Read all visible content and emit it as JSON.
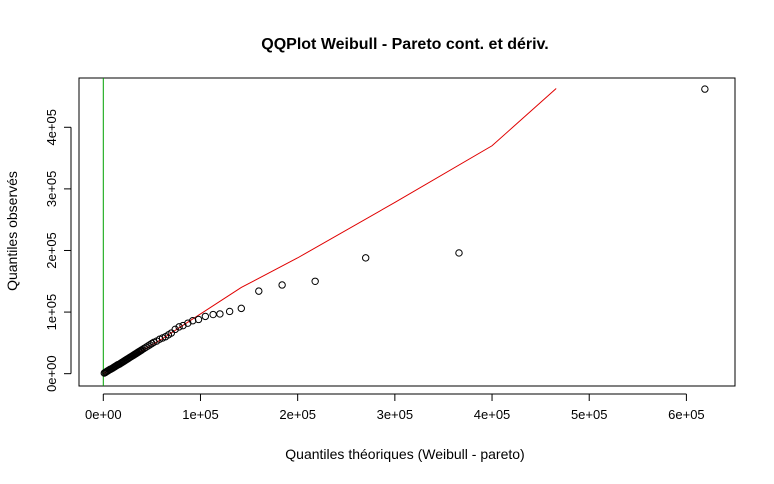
{
  "chart_data": {
    "type": "scatter",
    "title": "QQPlot Weibull - Pareto cont. et dériv.",
    "xlabel": "Quantiles théoriques (Weibull - pareto)",
    "ylabel": "Quantiles observés",
    "xlim": [
      -25000,
      650000
    ],
    "ylim": [
      -20000,
      480000
    ],
    "x_ticks": [
      0,
      100000,
      200000,
      300000,
      400000,
      500000,
      600000
    ],
    "x_tick_labels": [
      "0e+00",
      "1e+05",
      "2e+05",
      "3e+05",
      "4e+05",
      "5e+05",
      "6e+05"
    ],
    "y_ticks": [
      0,
      100000,
      200000,
      300000,
      400000
    ],
    "y_tick_labels": [
      "0e+00",
      "1e+05",
      "2e+05",
      "3e+05",
      "4e+05"
    ],
    "grid": false,
    "colors": {
      "points": "#000000",
      "fit_line": "#e00000",
      "reference_line": "#00a000"
    },
    "fit_line": {
      "x": [
        0,
        60000,
        142000,
        200000,
        300000,
        400000,
        466000
      ],
      "y": [
        0,
        56000,
        140000,
        188000,
        278000,
        370000,
        463000
      ]
    },
    "reference_line": {
      "x": 0
    },
    "series": [
      {
        "x": [
          1000,
          2000,
          3000,
          4000,
          5000,
          6000,
          7000,
          8000,
          9000,
          10000,
          11000,
          12000,
          13000,
          14000,
          15000,
          16000,
          17000,
          18000,
          19000,
          20000,
          21000,
          22000,
          23000,
          24000,
          25000,
          26000,
          27000,
          28000,
          29000,
          30000,
          31000,
          32000,
          33000,
          34000,
          35000,
          36000,
          37000,
          38000,
          39000,
          40000,
          42000,
          44000,
          46000,
          48000,
          50000,
          52000,
          55000,
          58000,
          61000,
          64000,
          67000,
          70000,
          74000,
          78000,
          82000,
          87000,
          92000,
          98000,
          105000,
          113000,
          120000,
          130000,
          142000,
          160000,
          184000,
          218000,
          270000,
          366000,
          619000
        ],
        "y": [
          1000,
          2000,
          3000,
          4000,
          5000,
          6000,
          7000,
          7500,
          8500,
          9500,
          10500,
          11500,
          12500,
          13500,
          14500,
          15000,
          16000,
          17000,
          18000,
          19000,
          20000,
          21000,
          22000,
          23000,
          24000,
          25000,
          26000,
          27000,
          28000,
          29000,
          30000,
          31000,
          32000,
          33000,
          34000,
          35000,
          36000,
          37000,
          38000,
          39000,
          41000,
          43000,
          45000,
          47000,
          49000,
          51000,
          53000,
          56000,
          58000,
          60000,
          63000,
          66000,
          72000,
          76000,
          78000,
          82000,
          86000,
          88000,
          93000,
          96000,
          97000,
          101000,
          106000,
          134000,
          144000,
          150000,
          188000,
          196000,
          462000
        ]
      }
    ]
  }
}
